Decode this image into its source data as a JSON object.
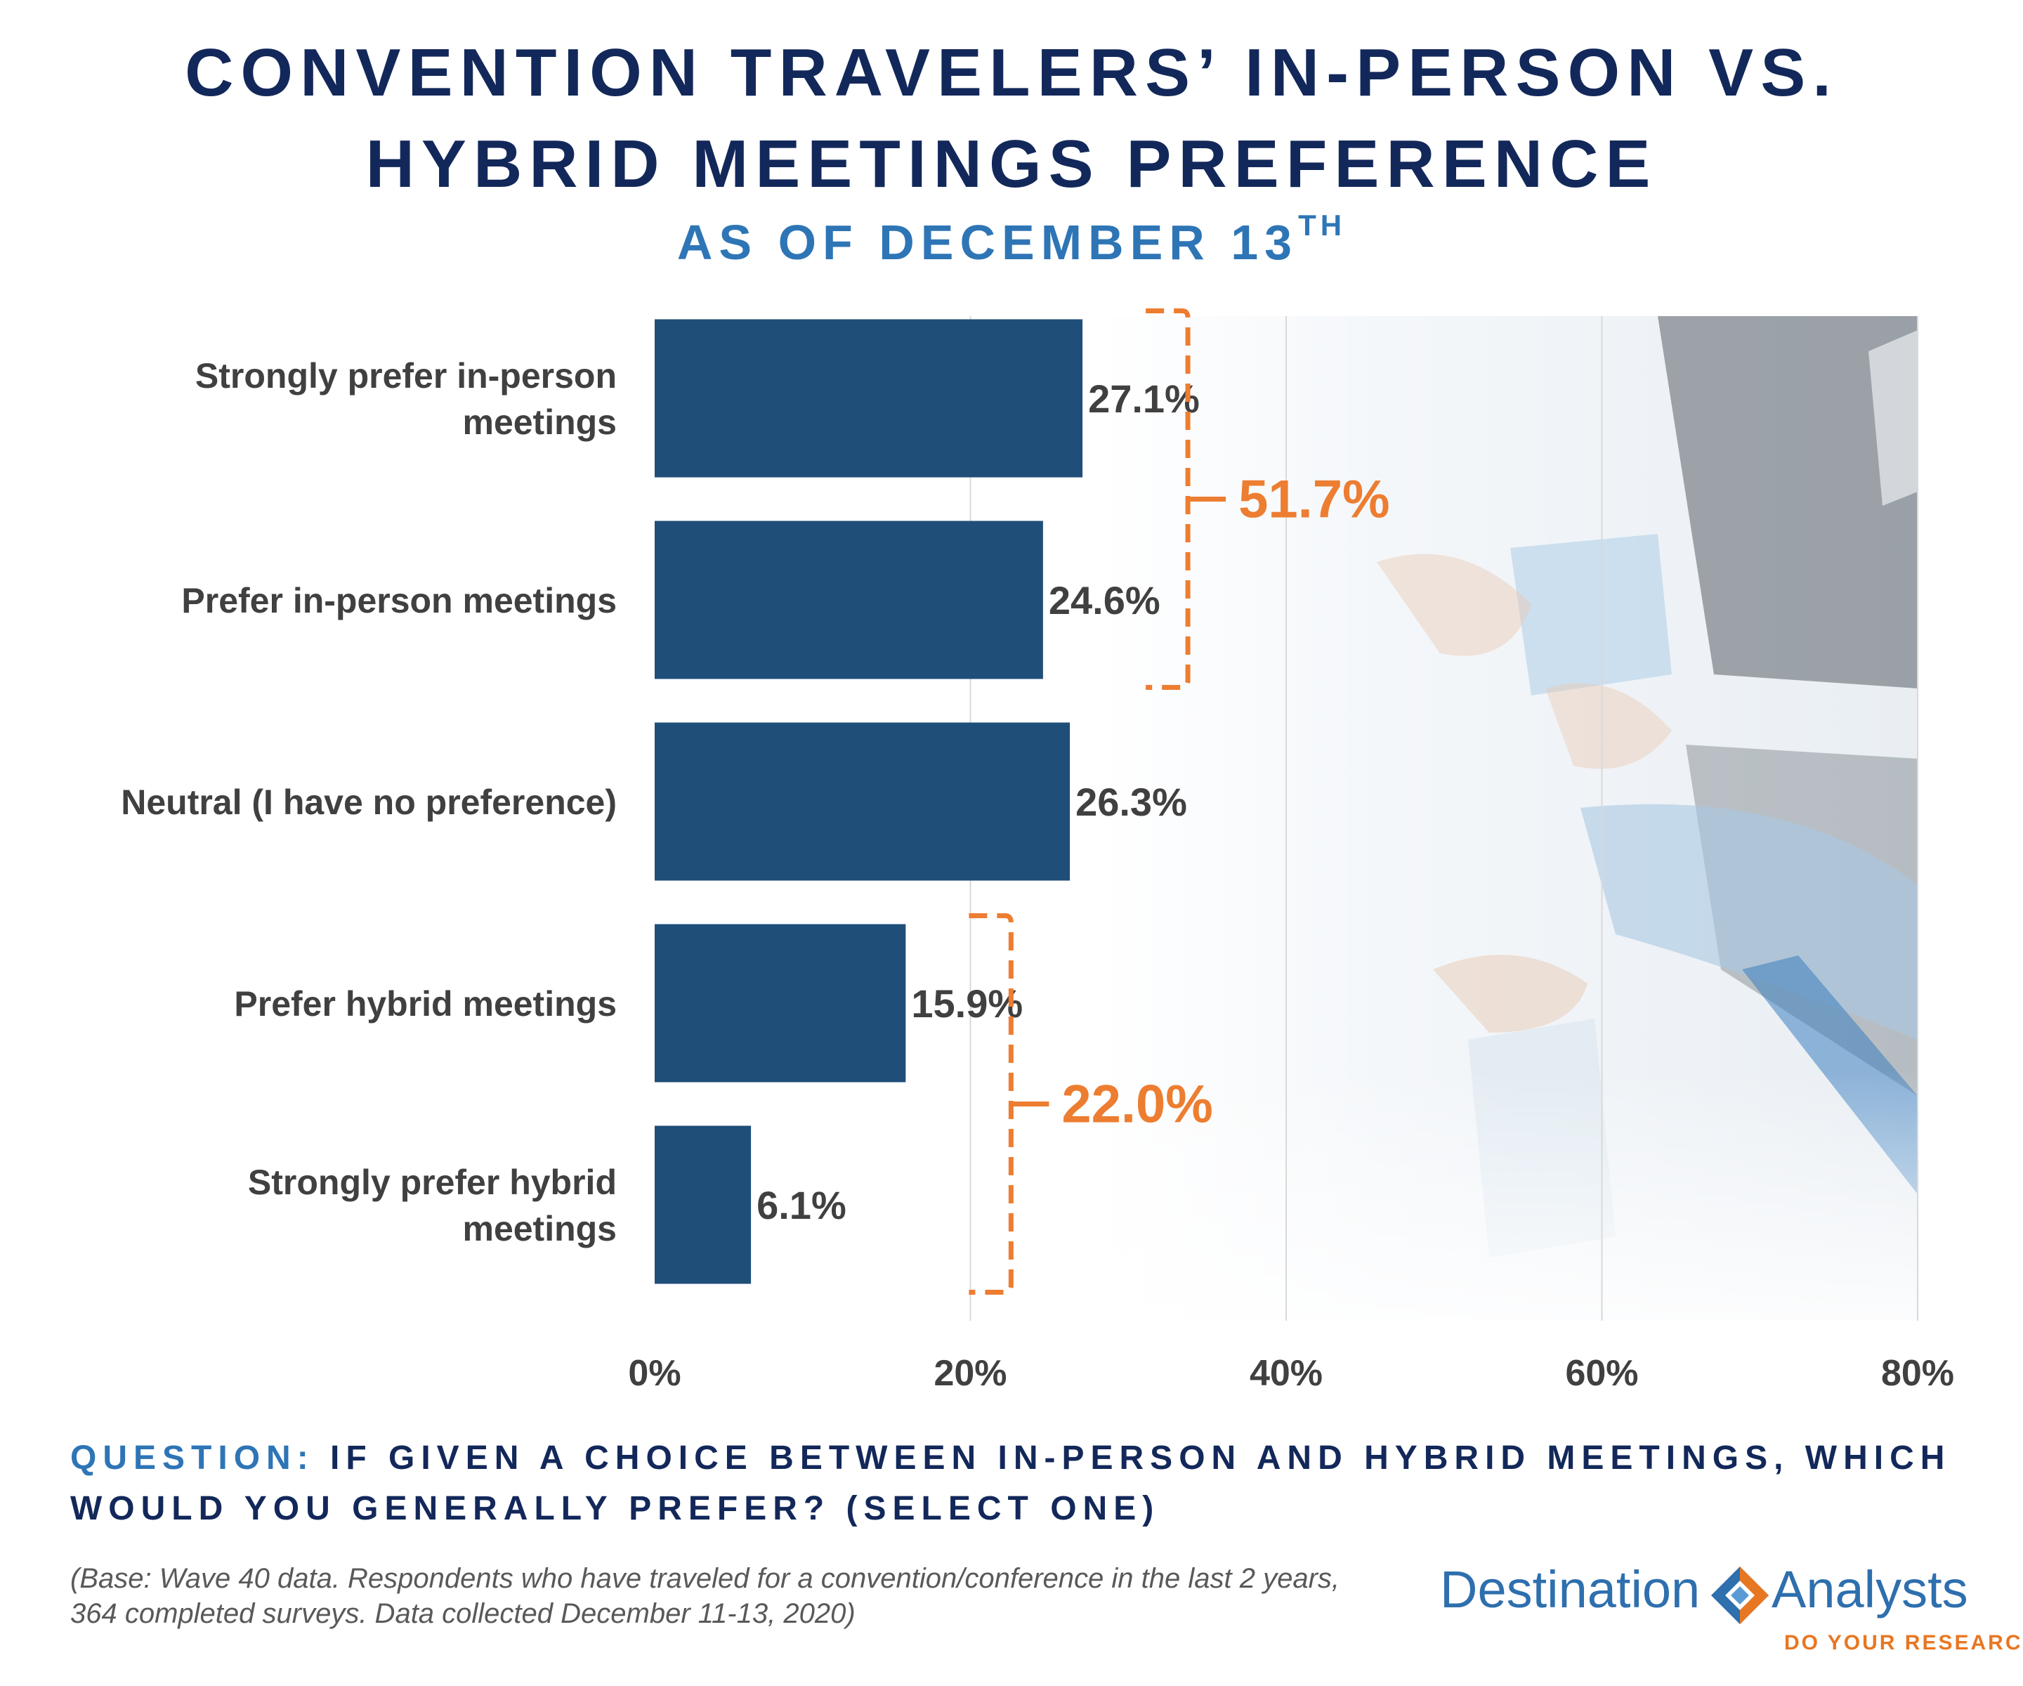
{
  "header": {
    "title_line1": "CONVENTION TRAVELERS’ IN-PERSON VS.",
    "title_line2": "HYBRID MEETINGS PREFERENCE",
    "subtitle": "AS OF DECEMBER 13",
    "subtitle_superscript": "TH"
  },
  "chart_data": {
    "type": "bar",
    "orientation": "horizontal",
    "categories": [
      "Strongly prefer in-person meetings",
      "Prefer in-person meetings",
      "Neutral (I have no preference)",
      "Prefer hybrid meetings",
      "Strongly prefer hybrid meetings"
    ],
    "category_label_lines": [
      [
        "Strongly prefer in-person",
        "meetings"
      ],
      [
        "Prefer in-person meetings"
      ],
      [
        "Neutral (I have no preference)"
      ],
      [
        "Prefer hybrid meetings"
      ],
      [
        "Strongly prefer hybrid",
        "meetings"
      ]
    ],
    "values": [
      27.1,
      24.6,
      26.3,
      15.9,
      6.1
    ],
    "value_labels": [
      "27.1%",
      "24.6%",
      "26.3%",
      "15.9%",
      "6.1%"
    ],
    "xlim": [
      0,
      80
    ],
    "xticks": [
      0,
      20,
      40,
      60,
      80
    ],
    "xtick_labels": [
      "0%",
      "20%",
      "40%",
      "60%",
      "80%"
    ],
    "grid": true,
    "bar_color": "#1f4e79",
    "bracket_color": "#ed7d31",
    "brackets": [
      {
        "from_category": 0,
        "to_category": 1,
        "label": "51.7%"
      },
      {
        "from_category": 3,
        "to_category": 4,
        "label": "22.0%"
      }
    ]
  },
  "footer": {
    "question_label": "QUESTION:",
    "question_text": " IF GIVEN A CHOICE BETWEEN IN-PERSON AND HYBRID MEETINGS, WHICH WOULD YOU GENERALLY PREFER? (SELECT ONE)",
    "base_note": "(Base: Wave 40 data. Respondents who have traveled for a convention/conference in the last 2 years, 364 completed surveys. Data collected December 11-13, 2020)"
  },
  "logo": {
    "word1": "Destination",
    "word2": "Analysts",
    "tagline": "DO YOUR RESEARCH",
    "primary_color": "#2e6fae",
    "accent_color": "#e87722"
  },
  "colors": {
    "title": "#13285a",
    "subtitle": "#2e75b6",
    "label_text": "#404040"
  }
}
